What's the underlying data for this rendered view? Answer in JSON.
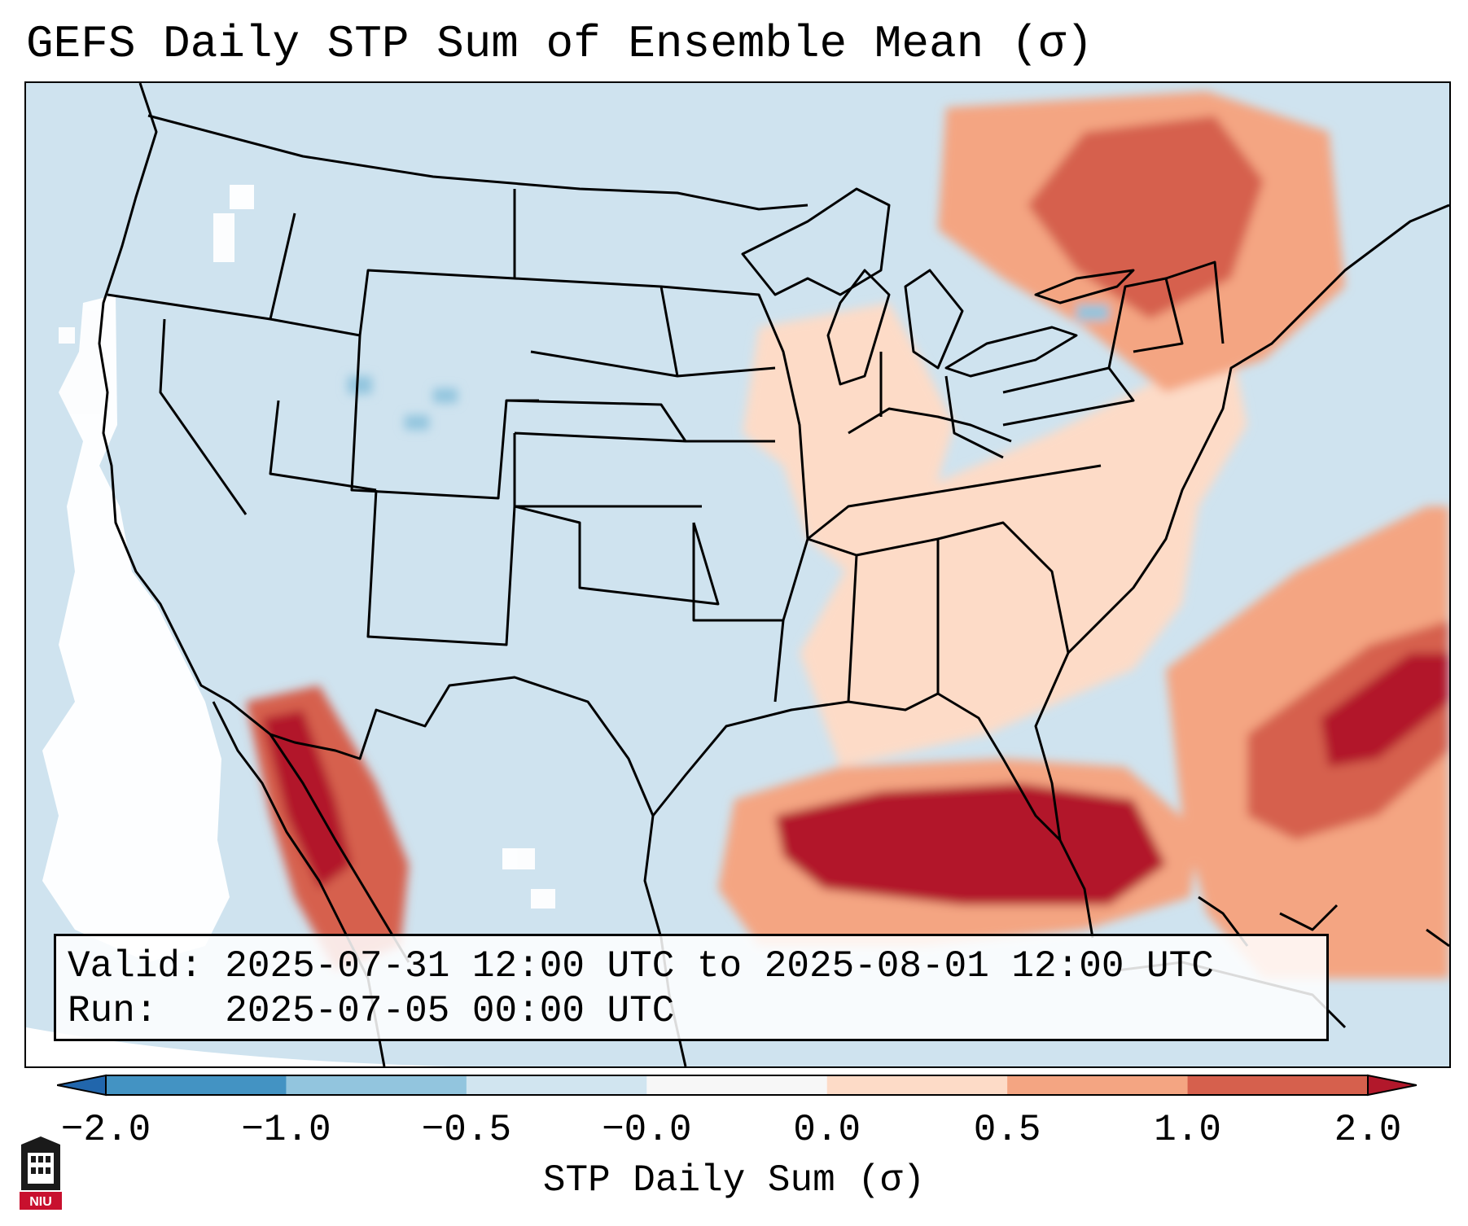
{
  "title": "GEFS Daily STP Sum of Ensemble Mean (σ)",
  "map": {
    "valid_label": "Valid:",
    "valid_value": "2025-07-31 12:00 UTC to 2025-08-01 12:00 UTC",
    "run_label": "Run:",
    "run_value": "2025-07-05 00:00 UTC",
    "region": "Contiguous United States",
    "colors": {
      "ocean_fill": "#cfe3ef",
      "land_fill": "#d2e4ef",
      "outside_domain": "#ffffff",
      "border_line": "#000000"
    }
  },
  "colorbar": {
    "label": "STP Daily Sum (σ)",
    "ticks": [
      "−2.0",
      "−1.0",
      "−0.5",
      "−0.0",
      "0.0",
      "0.5",
      "1.0",
      "2.0"
    ],
    "bins": [
      {
        "from": -2.0,
        "to": -1.0,
        "color": "#4393c3"
      },
      {
        "from": -1.0,
        "to": -0.5,
        "color": "#92c5de"
      },
      {
        "from": -0.5,
        "to": -0.0,
        "color": "#d1e5f0"
      },
      {
        "from": -0.0,
        "to": 0.0,
        "color": "#f7f7f7"
      },
      {
        "from": 0.0,
        "to": 0.5,
        "color": "#fddbc7"
      },
      {
        "from": 0.5,
        "to": 1.0,
        "color": "#f4a582"
      },
      {
        "from": 1.0,
        "to": 2.0,
        "color": "#d6604d"
      }
    ],
    "extend_low_color": "#2166ac",
    "extend_high_color": "#b2182b"
  },
  "anomaly_regions": [
    {
      "name": "gulf-of-mexico",
      "value": 2.0,
      "color": "#b2182b"
    },
    {
      "name": "western-atlantic",
      "value": 1.5,
      "color": "#d6604d"
    },
    {
      "name": "atlantic-coast",
      "value": 0.75,
      "color": "#f4a582"
    },
    {
      "name": "southeast-us",
      "value": 0.25,
      "color": "#fddbc7"
    },
    {
      "name": "upper-midwest",
      "value": 0.25,
      "color": "#fddbc7"
    },
    {
      "name": "quebec-ontario",
      "value": 1.0,
      "color": "#d6604d"
    },
    {
      "name": "gulf-of-california",
      "value": 2.0,
      "color": "#b2182b"
    },
    {
      "name": "sierra-madre-occidental",
      "value": 1.5,
      "color": "#d6604d"
    },
    {
      "name": "colorado-front-range",
      "value": -0.75,
      "color": "#92c5de"
    },
    {
      "name": "pacific-offshore",
      "value": 0.0,
      "color": "#ffffff"
    }
  ]
}
